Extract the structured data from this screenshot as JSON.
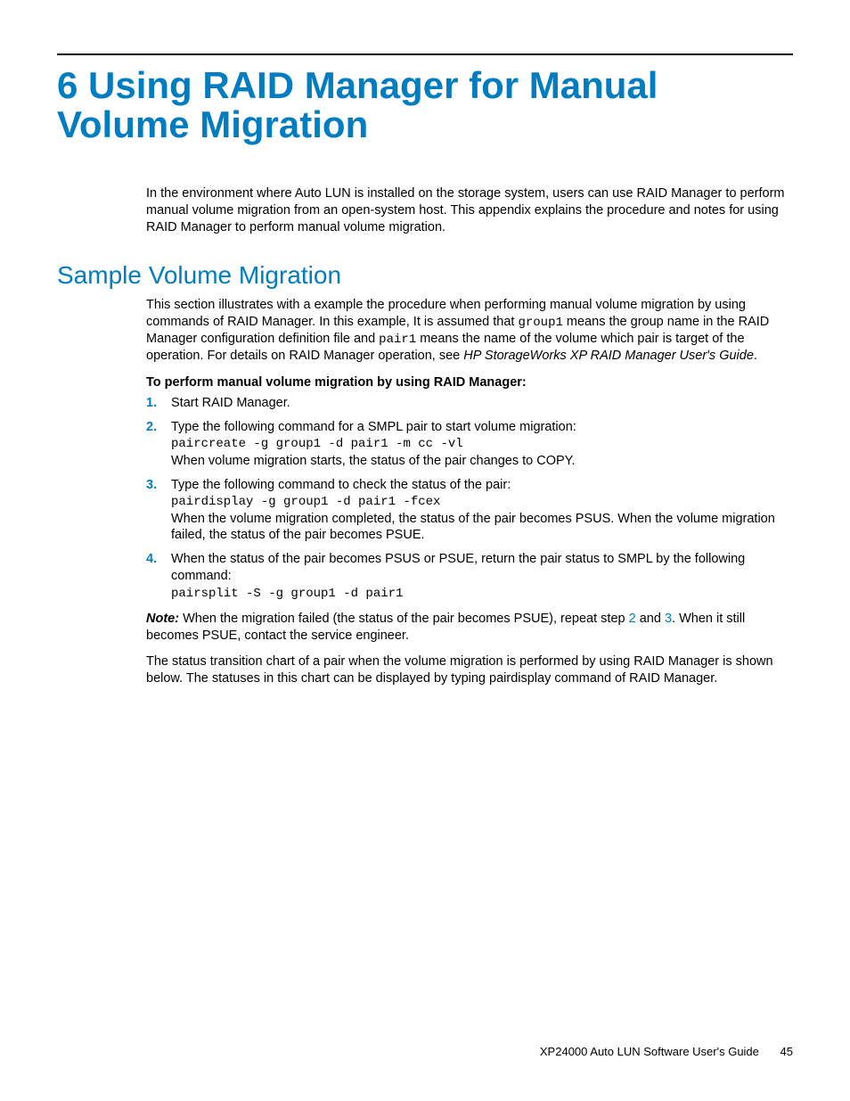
{
  "colors": {
    "accent": "#007cc0",
    "text": "#000000",
    "background": "#ffffff"
  },
  "typography": {
    "body_font": "Arial",
    "mono_font": "Courier New",
    "chapter_title_size_pt": 32,
    "section_title_size_pt": 21,
    "body_size_pt": 11
  },
  "chapter": {
    "title": "6 Using RAID Manager for Manual Volume Migration",
    "intro": "In the environment where Auto LUN is installed on the storage system, users can use RAID Manager to perform manual volume migration from an open-system host. This appendix explains the procedure and notes for using RAID Manager to perform manual volume migration."
  },
  "section": {
    "title": "Sample Volume Migration",
    "intro_pre": "This section illustrates with a example the procedure when performing manual volume migration by using commands of RAID Manager. In this example, It is assumed that ",
    "intro_code1": "group1",
    "intro_mid": " means the group name in the RAID Manager configuration definition file and ",
    "intro_code2": "pair1",
    "intro_post": " means the name of the volume which pair is target of the operation. For details on RAID Manager operation, see ",
    "intro_ref": "HP StorageWorks XP RAID Manager User's Guide",
    "intro_end": ".",
    "subhead": "To perform manual volume migration by using RAID Manager:",
    "steps": [
      {
        "n": "1.",
        "text": "Start RAID Manager."
      },
      {
        "n": "2.",
        "text_pre": "Type the following command for a SMPL pair to start volume migration:",
        "cmd": "paircreate -g group1 -d pair1 -m cc -vl",
        "text_post": "When volume migration starts, the status of the pair changes to COPY."
      },
      {
        "n": "3.",
        "text_pre": "Type the following command to check the status of the pair:",
        "cmd": "pairdisplay -g group1 -d pair1 -fcex",
        "text_post": "When the volume migration completed, the status of the pair becomes PSUS. When the volume migration failed, the status of the pair becomes PSUE."
      },
      {
        "n": "4.",
        "text_pre": "When the status of the pair becomes PSUS or PSUE, return the pair status to SMPL by the following command:",
        "cmd": "pairsplit -S -g group1 -d pair1"
      }
    ],
    "note_label": "Note:",
    "note_pre": "  When the migration failed (the status of the pair becomes PSUE), repeat step ",
    "note_link2": "2",
    "note_and": " and ",
    "note_link3": "3",
    "note_post": ". When it still becomes PSUE, contact the service engineer.",
    "closing": "The status transition chart of a pair when the volume migration is performed by using RAID Manager is shown below. The statuses in this chart can be displayed by typing pairdisplay command of RAID Manager."
  },
  "footer": {
    "doc_title": "XP24000 Auto LUN Software User's Guide",
    "page_number": "45"
  }
}
